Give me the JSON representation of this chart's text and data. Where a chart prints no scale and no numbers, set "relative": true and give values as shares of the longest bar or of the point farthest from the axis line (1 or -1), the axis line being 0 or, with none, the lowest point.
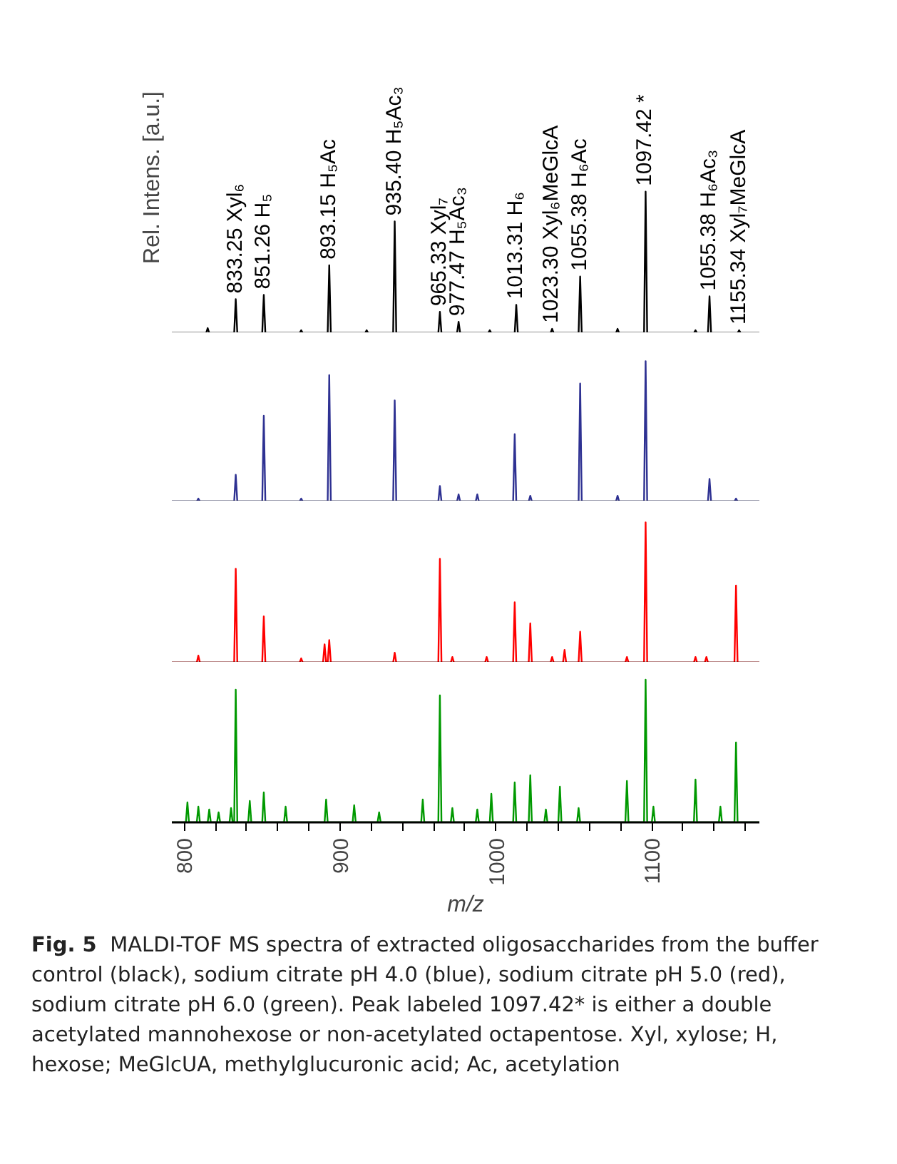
{
  "chart_data": [
    {
      "type": "line",
      "relative": true,
      "xlim": [
        792,
        1169
      ],
      "tick_labels": false,
      "ylabel": "Rel. Intens. [a.u.]",
      "series": [
        {
          "color": "#000000",
          "x": [
            792,
            814,
            815,
            816,
            832,
            833,
            834,
            850,
            851,
            852,
            874,
            875,
            876,
            892,
            893,
            894,
            916,
            917,
            918,
            934,
            935,
            936,
            963,
            964,
            965,
            975,
            976,
            977,
            995,
            996,
            997,
            1012,
            1013,
            1014,
            1035,
            1036,
            1037,
            1053,
            1054,
            1055,
            1077,
            1078,
            1079,
            1095,
            1096,
            1097,
            1127,
            1128,
            1129,
            1136,
            1137,
            1138,
            1155,
            1156,
            1157,
            1169
          ],
          "values": [
            0,
            0,
            0.035,
            0,
            0,
            0.24,
            0,
            0,
            0.27,
            0,
            0,
            0.02,
            0,
            0,
            0.48,
            0,
            0,
            0.02,
            0,
            0,
            0.79,
            0,
            0,
            0.15,
            0,
            0,
            0.08,
            0,
            0,
            0.02,
            0,
            0,
            0.2,
            0,
            0,
            0.03,
            0,
            0,
            0.4,
            0,
            0,
            0.03,
            0,
            0,
            1,
            0,
            0,
            0.02,
            0,
            0,
            0.26,
            0,
            0,
            0.02,
            0,
            0
          ]
        }
      ],
      "annotations": [
        {
          "text": "833.25 Xyl₆",
          "x": 833,
          "y": 0.24
        },
        {
          "text": "851.26 H₅",
          "x": 851,
          "y": 0.27
        },
        {
          "text": "893.15 H₅Ac",
          "x": 893,
          "y": 0.48
        },
        {
          "text": "935.40 H₅Ac₃",
          "x": 935,
          "y": 0.79
        },
        {
          "text": "965.33 Xyl₇",
          "x": 964,
          "y": 0.15
        },
        {
          "text": "977.47 H₅Ac₃",
          "x": 976,
          "y": 0.08
        },
        {
          "text": "1013.31 H₆",
          "x": 1013,
          "y": 0.2
        },
        {
          "text": "1023.30 Xyl₆MeGlcA",
          "x": 1036,
          "y": 0.03
        },
        {
          "text": "1055.38 H₆Ac",
          "x": 1054,
          "y": 0.4
        },
        {
          "text": "1097.42 *",
          "x": 1096,
          "y": 1
        },
        {
          "text": "1055.38 H₆Ac₃",
          "x": 1137,
          "y": 0.26
        },
        {
          "text": "1155.34 Xyl₇MeGlcA",
          "x": 1156,
          "y": 0.02
        }
      ]
    },
    {
      "type": "line",
      "relative": true,
      "xlim": [
        792,
        1169
      ],
      "tick_labels": false,
      "series": [
        {
          "color": "#2e3192",
          "x": [
            792,
            808,
            809,
            810,
            832,
            833,
            834,
            850,
            851,
            852,
            874,
            875,
            876,
            892,
            893,
            894,
            934,
            935,
            936,
            963,
            964,
            965,
            975,
            976,
            977,
            987,
            988,
            989,
            1011,
            1012,
            1013,
            1021,
            1022,
            1023,
            1053,
            1054,
            1055,
            1077,
            1078,
            1079,
            1095,
            1096,
            1097,
            1136,
            1137,
            1138,
            1153,
            1154,
            1155,
            1169
          ],
          "values": [
            0,
            0,
            0.02,
            0,
            0,
            0.19,
            0,
            0,
            0.61,
            0,
            0,
            0.02,
            0,
            0,
            0.9,
            0,
            0,
            0.72,
            0,
            0,
            0.11,
            0,
            0,
            0.05,
            0,
            0,
            0.05,
            0,
            0,
            0.48,
            0,
            0,
            0.04,
            0,
            0,
            0.84,
            0,
            0,
            0.04,
            0,
            0,
            1,
            0,
            0,
            0.16,
            0,
            0,
            0.02,
            0,
            0
          ]
        }
      ]
    },
    {
      "type": "line",
      "relative": true,
      "xlim": [
        792,
        1169
      ],
      "tick_labels": false,
      "series": [
        {
          "color": "#ff0000",
          "x": [
            792,
            808,
            809,
            810,
            832,
            833,
            834,
            850,
            851,
            852,
            874,
            875,
            876,
            889,
            890,
            891,
            892,
            893,
            894,
            934,
            935,
            936,
            963,
            964,
            965,
            971,
            972,
            973,
            993,
            994,
            995,
            1011,
            1012,
            1013,
            1021,
            1022,
            1023,
            1035,
            1036,
            1037,
            1043,
            1044,
            1045,
            1053,
            1054,
            1055,
            1083,
            1084,
            1085,
            1095,
            1096,
            1097,
            1127,
            1128,
            1129,
            1134,
            1135,
            1136,
            1153,
            1154,
            1155,
            1169
          ],
          "values": [
            0,
            0,
            0.05,
            0,
            0,
            0.67,
            0,
            0,
            0.33,
            0,
            0,
            0.03,
            0,
            0,
            0.13,
            0,
            0,
            0.16,
            0,
            0,
            0.07,
            0,
            0,
            0.74,
            0,
            0,
            0.04,
            0,
            0,
            0.04,
            0,
            0,
            0.43,
            0,
            0,
            0.28,
            0,
            0,
            0.04,
            0,
            0,
            0.09,
            0,
            0,
            0.22,
            0,
            0,
            0.04,
            0,
            0,
            1,
            0,
            0,
            0.04,
            0,
            0,
            0.04,
            0,
            0,
            0.55,
            0,
            0
          ]
        }
      ]
    },
    {
      "type": "line",
      "relative": true,
      "xlim": [
        792,
        1169
      ],
      "tick_labels": "x",
      "xlabel": "m/z",
      "xticks": [
        800,
        {
          "value": 820,
          "label": null
        },
        {
          "value": 840,
          "label": null
        },
        {
          "value": 860,
          "label": null
        },
        {
          "value": 880,
          "label": null
        },
        900,
        {
          "value": 920,
          "label": null
        },
        {
          "value": 940,
          "label": null
        },
        {
          "value": 960,
          "label": null
        },
        {
          "value": 980,
          "label": null
        },
        1000,
        {
          "value": 1020,
          "label": null
        },
        {
          "value": 1040,
          "label": null
        },
        {
          "value": 1060,
          "label": null
        },
        {
          "value": 1080,
          "label": null
        },
        1100,
        {
          "value": 1120,
          "label": null
        },
        {
          "value": 1140,
          "label": null
        },
        {
          "value": 1160,
          "label": null
        }
      ],
      "series": [
        {
          "color": "#009900",
          "x": [
            792,
            801,
            802,
            803,
            808,
            809,
            810,
            815,
            816,
            817,
            821,
            822,
            823,
            829,
            830,
            831,
            832,
            833,
            834,
            841,
            842,
            843,
            850,
            851,
            852,
            864,
            865,
            866,
            890,
            891,
            892,
            908,
            909,
            910,
            924,
            925,
            926,
            952,
            953,
            954,
            963,
            964,
            965,
            971,
            972,
            973,
            987,
            988,
            989,
            996,
            997,
            998,
            1011,
            1012,
            1013,
            1021,
            1022,
            1023,
            1031,
            1032,
            1033,
            1040,
            1041,
            1042,
            1052,
            1053,
            1054,
            1083,
            1084,
            1085,
            1095,
            1096,
            1097,
            1100,
            1101,
            1102,
            1127,
            1128,
            1129,
            1143,
            1144,
            1145,
            1153,
            1154,
            1155,
            1169
          ],
          "values": [
            0,
            0,
            0.14,
            0,
            0,
            0.11,
            0,
            0,
            0.09,
            0,
            0,
            0.07,
            0,
            0,
            0.1,
            0,
            0,
            0.93,
            0,
            0,
            0.15,
            0,
            0,
            0.21,
            0,
            0,
            0.11,
            0,
            0,
            0.16,
            0,
            0,
            0.12,
            0,
            0,
            0.07,
            0,
            0,
            0.16,
            0,
            0,
            0.89,
            0,
            0,
            0.1,
            0,
            0,
            0.09,
            0,
            0,
            0.2,
            0,
            0,
            0.28,
            0,
            0,
            0.33,
            0,
            0,
            0.09,
            0,
            0,
            0.25,
            0,
            0,
            0.1,
            0,
            0,
            0.29,
            0,
            0,
            1,
            0,
            0,
            0.11,
            0,
            0,
            0.3,
            0,
            0,
            0.11,
            0,
            0,
            0.56,
            0,
            0
          ]
        }
      ],
      "annotations": [
        "Fig. 5",
        "MALDI-TOF MS spectra of extracted oligosaccharides from the buffer control (black), sodium citrate pH 4.0 (blue), sodium citrate pH 5.0 (red), sodium citrate pH 6.0 (green). Peak labeled 1097.42* is either a double acetylated mannohexose or non-acetylated octapentose. Xyl, xylose; H, hexose; MeGlcUA, methylglucuronic acid; Ac, acetylation"
      ]
    }
  ]
}
